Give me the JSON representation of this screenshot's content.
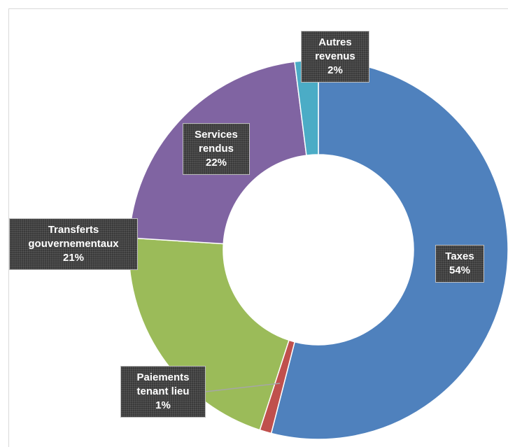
{
  "chart_data": {
    "type": "doughnut",
    "categories": [
      "Taxes",
      "Paiements tenant lieu",
      "Transferts gouvernementaux",
      "Services rendus",
      "Autres revenus"
    ],
    "values": [
      54,
      1,
      21,
      22,
      2
    ],
    "value_labels": [
      "54%",
      "1%",
      "21%",
      "22%",
      "2%"
    ],
    "colors": [
      "#4f81bd",
      "#c0504d",
      "#9bbb59",
      "#8064a2",
      "#4bacc6"
    ]
  }
}
